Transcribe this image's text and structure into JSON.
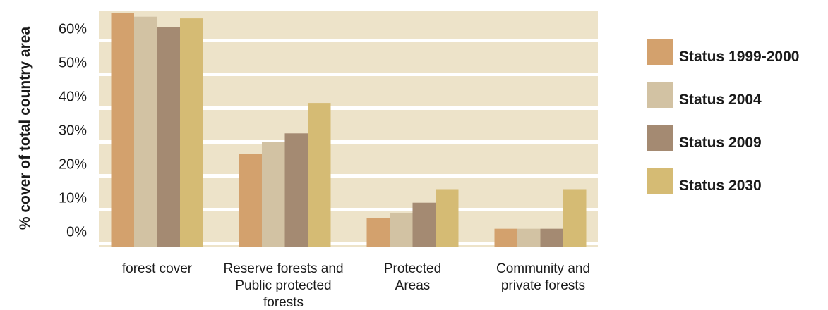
{
  "chart_data": {
    "type": "bar",
    "title": "",
    "xlabel": "",
    "ylabel": "% cover of total country area",
    "categories": [
      [
        "forest cover"
      ],
      [
        "Reserve forests and",
        "Public protected",
        "forests"
      ],
      [
        "Protected",
        "Areas"
      ],
      [
        "Community and",
        "private forests"
      ]
    ],
    "series": [
      {
        "name": "Status 1999-2000",
        "color": "#d3a16d",
        "values": [
          64.5,
          23.0,
          4.0,
          0.8
        ]
      },
      {
        "name": "Status 2004",
        "color": "#d2c2a3",
        "values": [
          63.5,
          26.5,
          5.5,
          0.8
        ]
      },
      {
        "name": "Status 2009",
        "color": "#a48a72",
        "values": [
          60.5,
          29.0,
          8.5,
          0.8
        ]
      },
      {
        "name": "Status 2030",
        "color": "#d5bb74",
        "values": [
          63.0,
          38.0,
          12.5,
          12.5
        ]
      }
    ],
    "yticks": [
      "60%",
      "50%",
      "40%",
      "30%",
      "20%",
      "10%",
      "0%"
    ],
    "ylim": [
      -5,
      67
    ],
    "grid": true,
    "legend_position": "right",
    "plot_background": "#ede3c9"
  }
}
